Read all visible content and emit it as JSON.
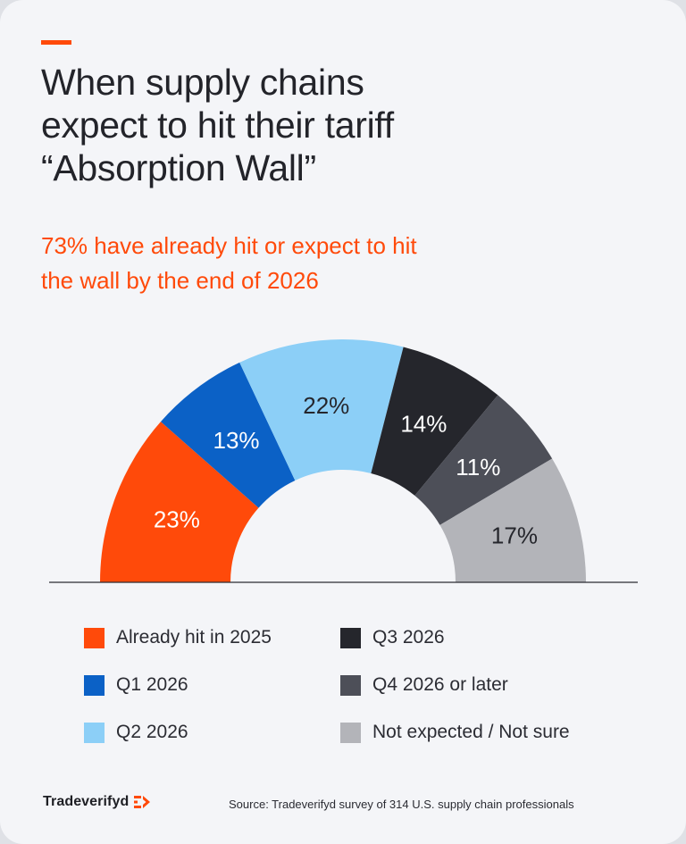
{
  "title_lines": [
    "When supply chains",
    "expect to hit their tariff",
    "“Absorption Wall”"
  ],
  "subtitle_lines": [
    "73% have already hit or expect to hit",
    "the wall by the end of 2026"
  ],
  "chart_data": {
    "type": "pie",
    "variant": "half-donut",
    "title": "When supply chains expect to hit their tariff “Absorption Wall”",
    "subtitle": "73% have already hit or expect to hit the wall by the end of 2026",
    "categories": [
      "Already hit in 2025",
      "Q1 2026",
      "Q2 2026",
      "Q3 2026",
      "Q4 2026 or later",
      "Not expected / Not sure"
    ],
    "values": [
      23,
      13,
      22,
      14,
      11,
      17
    ],
    "labels": [
      "23%",
      "13%",
      "22%",
      "14%",
      "11%",
      "17%"
    ],
    "colors": [
      "#ff4a0a",
      "#0b61c6",
      "#8ccff7",
      "#25262c",
      "#4d4f58",
      "#b3b4b9"
    ],
    "label_colors": [
      "#ffffff",
      "#ffffff",
      "#25262c",
      "#ffffff",
      "#ffffff",
      "#25262c"
    ],
    "legend_placement": "bottom"
  },
  "legend": [
    {
      "label": "Already hit in 2025",
      "color": "#ff4a0a"
    },
    {
      "label": "Q1 2026",
      "color": "#0b61c6"
    },
    {
      "label": "Q2 2026",
      "color": "#8ccff7"
    },
    {
      "label": "Q3 2026",
      "color": "#25262c"
    },
    {
      "label": "Q4 2026 or later",
      "color": "#4d4f58"
    },
    {
      "label": "Not expected / Not sure",
      "color": "#b3b4b9"
    }
  ],
  "footer": {
    "brand": "Tradeverifyd",
    "brand_color": "#ff4a0a",
    "source": "Source: Tradeverifyd survey of 314 U.S. supply chain professionals"
  }
}
